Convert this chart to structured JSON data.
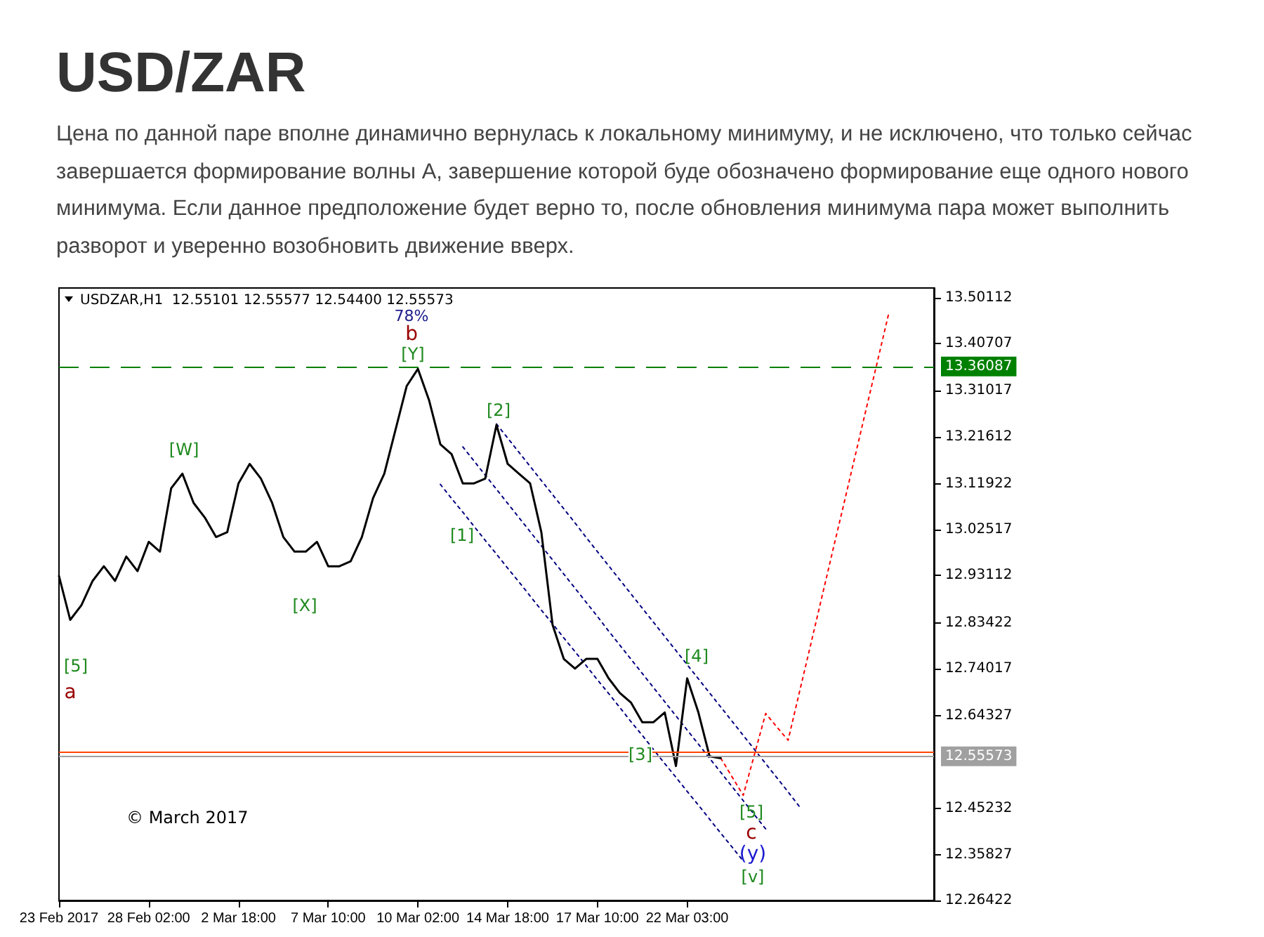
{
  "chart_data": {
    "type": "line",
    "title": "USD/ZAR",
    "subtitle": "Цена по данной паре вполне динамично вернулась к локальному минимуму, и не исключено, что только сейчас завершается формирование волны А, завершение которой буде обозначено формирование еще одного нового минимума. Если данное предположение будет верно то, после обновления минимума пара может выполнить разворот и уверенно возобновить движение вверх.",
    "categories": [
      "23 Feb 2017",
      null,
      null,
      null,
      null,
      null,
      null,
      null,
      "28 Feb 02:00",
      null,
      null,
      null,
      null,
      null,
      null,
      null,
      "2 Mar 18:00",
      null,
      null,
      null,
      null,
      null,
      null,
      null,
      "7 Mar 10:00",
      null,
      null,
      null,
      null,
      null,
      null,
      null,
      "10 Mar 02:00",
      null,
      null,
      null,
      null,
      null,
      null,
      null,
      "14 Mar 18:00",
      null,
      null,
      null,
      null,
      null,
      null,
      null,
      "17 Mar 10:00",
      null,
      null,
      null,
      null,
      null,
      null,
      null,
      "22 Mar 03:00",
      null,
      null,
      null,
      null,
      null,
      null,
      null,
      null,
      null,
      null,
      null,
      null,
      null,
      null,
      null,
      null,
      null,
      null,
      null,
      null,
      null,
      null
    ],
    "series": [
      {
        "color": "#000000",
        "values": [
          12.93,
          12.84,
          12.87,
          12.92,
          12.95,
          12.92,
          12.97,
          12.94,
          13.0,
          12.98,
          13.11,
          13.14,
          13.08,
          13.05,
          13.01,
          13.02,
          13.12,
          13.16,
          13.13,
          13.08,
          13.01,
          12.98,
          12.98,
          13.0,
          12.95,
          12.95,
          12.96,
          13.01,
          13.09,
          13.14,
          13.23,
          13.32,
          13.355,
          13.29,
          13.2,
          13.18,
          13.12,
          13.12,
          13.13,
          13.24,
          13.16,
          13.14,
          13.12,
          13.02,
          12.83,
          12.76,
          12.74,
          12.76,
          12.76,
          12.72,
          12.69,
          12.67,
          12.63,
          12.63,
          12.65,
          12.54,
          12.72,
          12.65,
          12.56,
          12.556,
          null,
          null,
          null,
          null,
          null,
          null,
          null,
          null,
          null,
          null,
          null,
          null,
          null,
          null,
          null,
          null,
          null,
          null,
          null
        ]
      },
      {
        "color": "#000080",
        "line_style": "dotted",
        "values": [
          null,
          null,
          null,
          null,
          null,
          null,
          null,
          null,
          null,
          null,
          null,
          null,
          null,
          null,
          null,
          null,
          null,
          null,
          null,
          null,
          null,
          null,
          null,
          null,
          null,
          null,
          null,
          null,
          null,
          null,
          null,
          null,
          null,
          null,
          13.118,
          13.089,
          13.061,
          13.032,
          13.003,
          12.975,
          12.946,
          12.918,
          12.889,
          12.86,
          12.832,
          12.803,
          12.775,
          12.746,
          12.717,
          12.689,
          12.66,
          12.631,
          12.603,
          12.574,
          12.545,
          12.517,
          12.488,
          12.46,
          12.431,
          12.402,
          12.374,
          12.345,
          null,
          null,
          null,
          null,
          null,
          null,
          null,
          null,
          null,
          null,
          null,
          null,
          null,
          null,
          null,
          null,
          null
        ]
      },
      {
        "color": "#000080",
        "line_style": "dotted",
        "values": [
          null,
          null,
          null,
          null,
          null,
          null,
          null,
          null,
          null,
          null,
          null,
          null,
          null,
          null,
          null,
          null,
          null,
          null,
          null,
          null,
          null,
          null,
          null,
          null,
          null,
          null,
          null,
          null,
          null,
          null,
          null,
          null,
          null,
          null,
          null,
          null,
          13.195,
          13.166,
          13.137,
          13.108,
          13.079,
          13.05,
          13.021,
          12.992,
          12.963,
          12.934,
          12.905,
          12.876,
          12.847,
          12.817,
          12.788,
          12.759,
          12.73,
          12.701,
          12.672,
          12.643,
          12.614,
          12.585,
          12.556,
          12.527,
          12.498,
          12.469,
          12.44,
          12.411,
          null,
          null,
          null,
          null,
          null,
          null,
          null,
          null,
          null,
          null,
          null,
          null,
          null,
          null,
          null
        ]
      },
      {
        "color": "#000080",
        "line_style": "dotted",
        "values": [
          null,
          null,
          null,
          null,
          null,
          null,
          null,
          null,
          null,
          null,
          null,
          null,
          null,
          null,
          null,
          null,
          null,
          null,
          null,
          null,
          null,
          null,
          null,
          null,
          null,
          null,
          null,
          null,
          null,
          null,
          null,
          null,
          null,
          null,
          null,
          null,
          null,
          null,
          null,
          13.242,
          13.213,
          13.184,
          13.155,
          13.126,
          13.097,
          13.068,
          13.039,
          13.009,
          12.98,
          12.951,
          12.922,
          12.893,
          12.864,
          12.835,
          12.806,
          12.777,
          12.748,
          12.719,
          12.69,
          12.661,
          12.632,
          12.603,
          12.574,
          12.545,
          12.516,
          12.487,
          12.457,
          null,
          null,
          null,
          null,
          null,
          null,
          null,
          null,
          null,
          null,
          null,
          null
        ]
      },
      {
        "color": "#ff0000",
        "line_style": "dotted",
        "values": [
          null,
          null,
          null,
          null,
          null,
          null,
          null,
          null,
          null,
          null,
          null,
          null,
          null,
          null,
          null,
          null,
          null,
          null,
          null,
          null,
          null,
          null,
          null,
          null,
          null,
          null,
          null,
          null,
          null,
          null,
          null,
          null,
          null,
          null,
          null,
          null,
          null,
          null,
          null,
          null,
          null,
          null,
          null,
          null,
          null,
          null,
          null,
          null,
          null,
          null,
          null,
          null,
          null,
          null,
          null,
          null,
          null,
          null,
          null,
          12.556,
          12.518,
          12.48,
          12.564,
          12.648,
          12.62,
          12.593,
          12.691,
          12.788,
          12.886,
          12.984,
          13.081,
          13.179,
          13.277,
          13.374,
          13.472,
          null,
          null,
          null,
          null
        ]
      }
    ],
    "ylim": [
      12.26422,
      13.521
    ],
    "yticks": [
      12.26422,
      12.35827,
      12.45232,
      12.64327,
      12.74017,
      12.83422,
      12.93112,
      13.02517,
      13.11922,
      13.21612,
      13.31017,
      13.40707,
      13.50112
    ],
    "ref_lines": [
      {
        "axis": "y",
        "value": 13.36087,
        "label": "13.36087",
        "color": "#008000",
        "line_style": "dashed"
      },
      {
        "axis": "y",
        "value": 12.5697,
        "label": null,
        "color": "#ff4500",
        "line_style": "solid"
      },
      {
        "axis": "y",
        "value": 12.55573,
        "label": "12.55573",
        "color": "#a0a0a0",
        "line_style": "solid"
      }
    ],
    "annotations": [
      "USDZAR,H1  12.55101 12.55577 12.54400 12.55573",
      "© March 2017",
      "[5]",
      "a",
      "[W]",
      "[X]",
      "78%",
      "b",
      "[Y]",
      "[2]",
      "[1]",
      "[3]",
      "[4]",
      "[5]",
      "c",
      "(y)",
      "[v]"
    ],
    "grid": false,
    "marker": "none",
    "line_style": "solid"
  }
}
